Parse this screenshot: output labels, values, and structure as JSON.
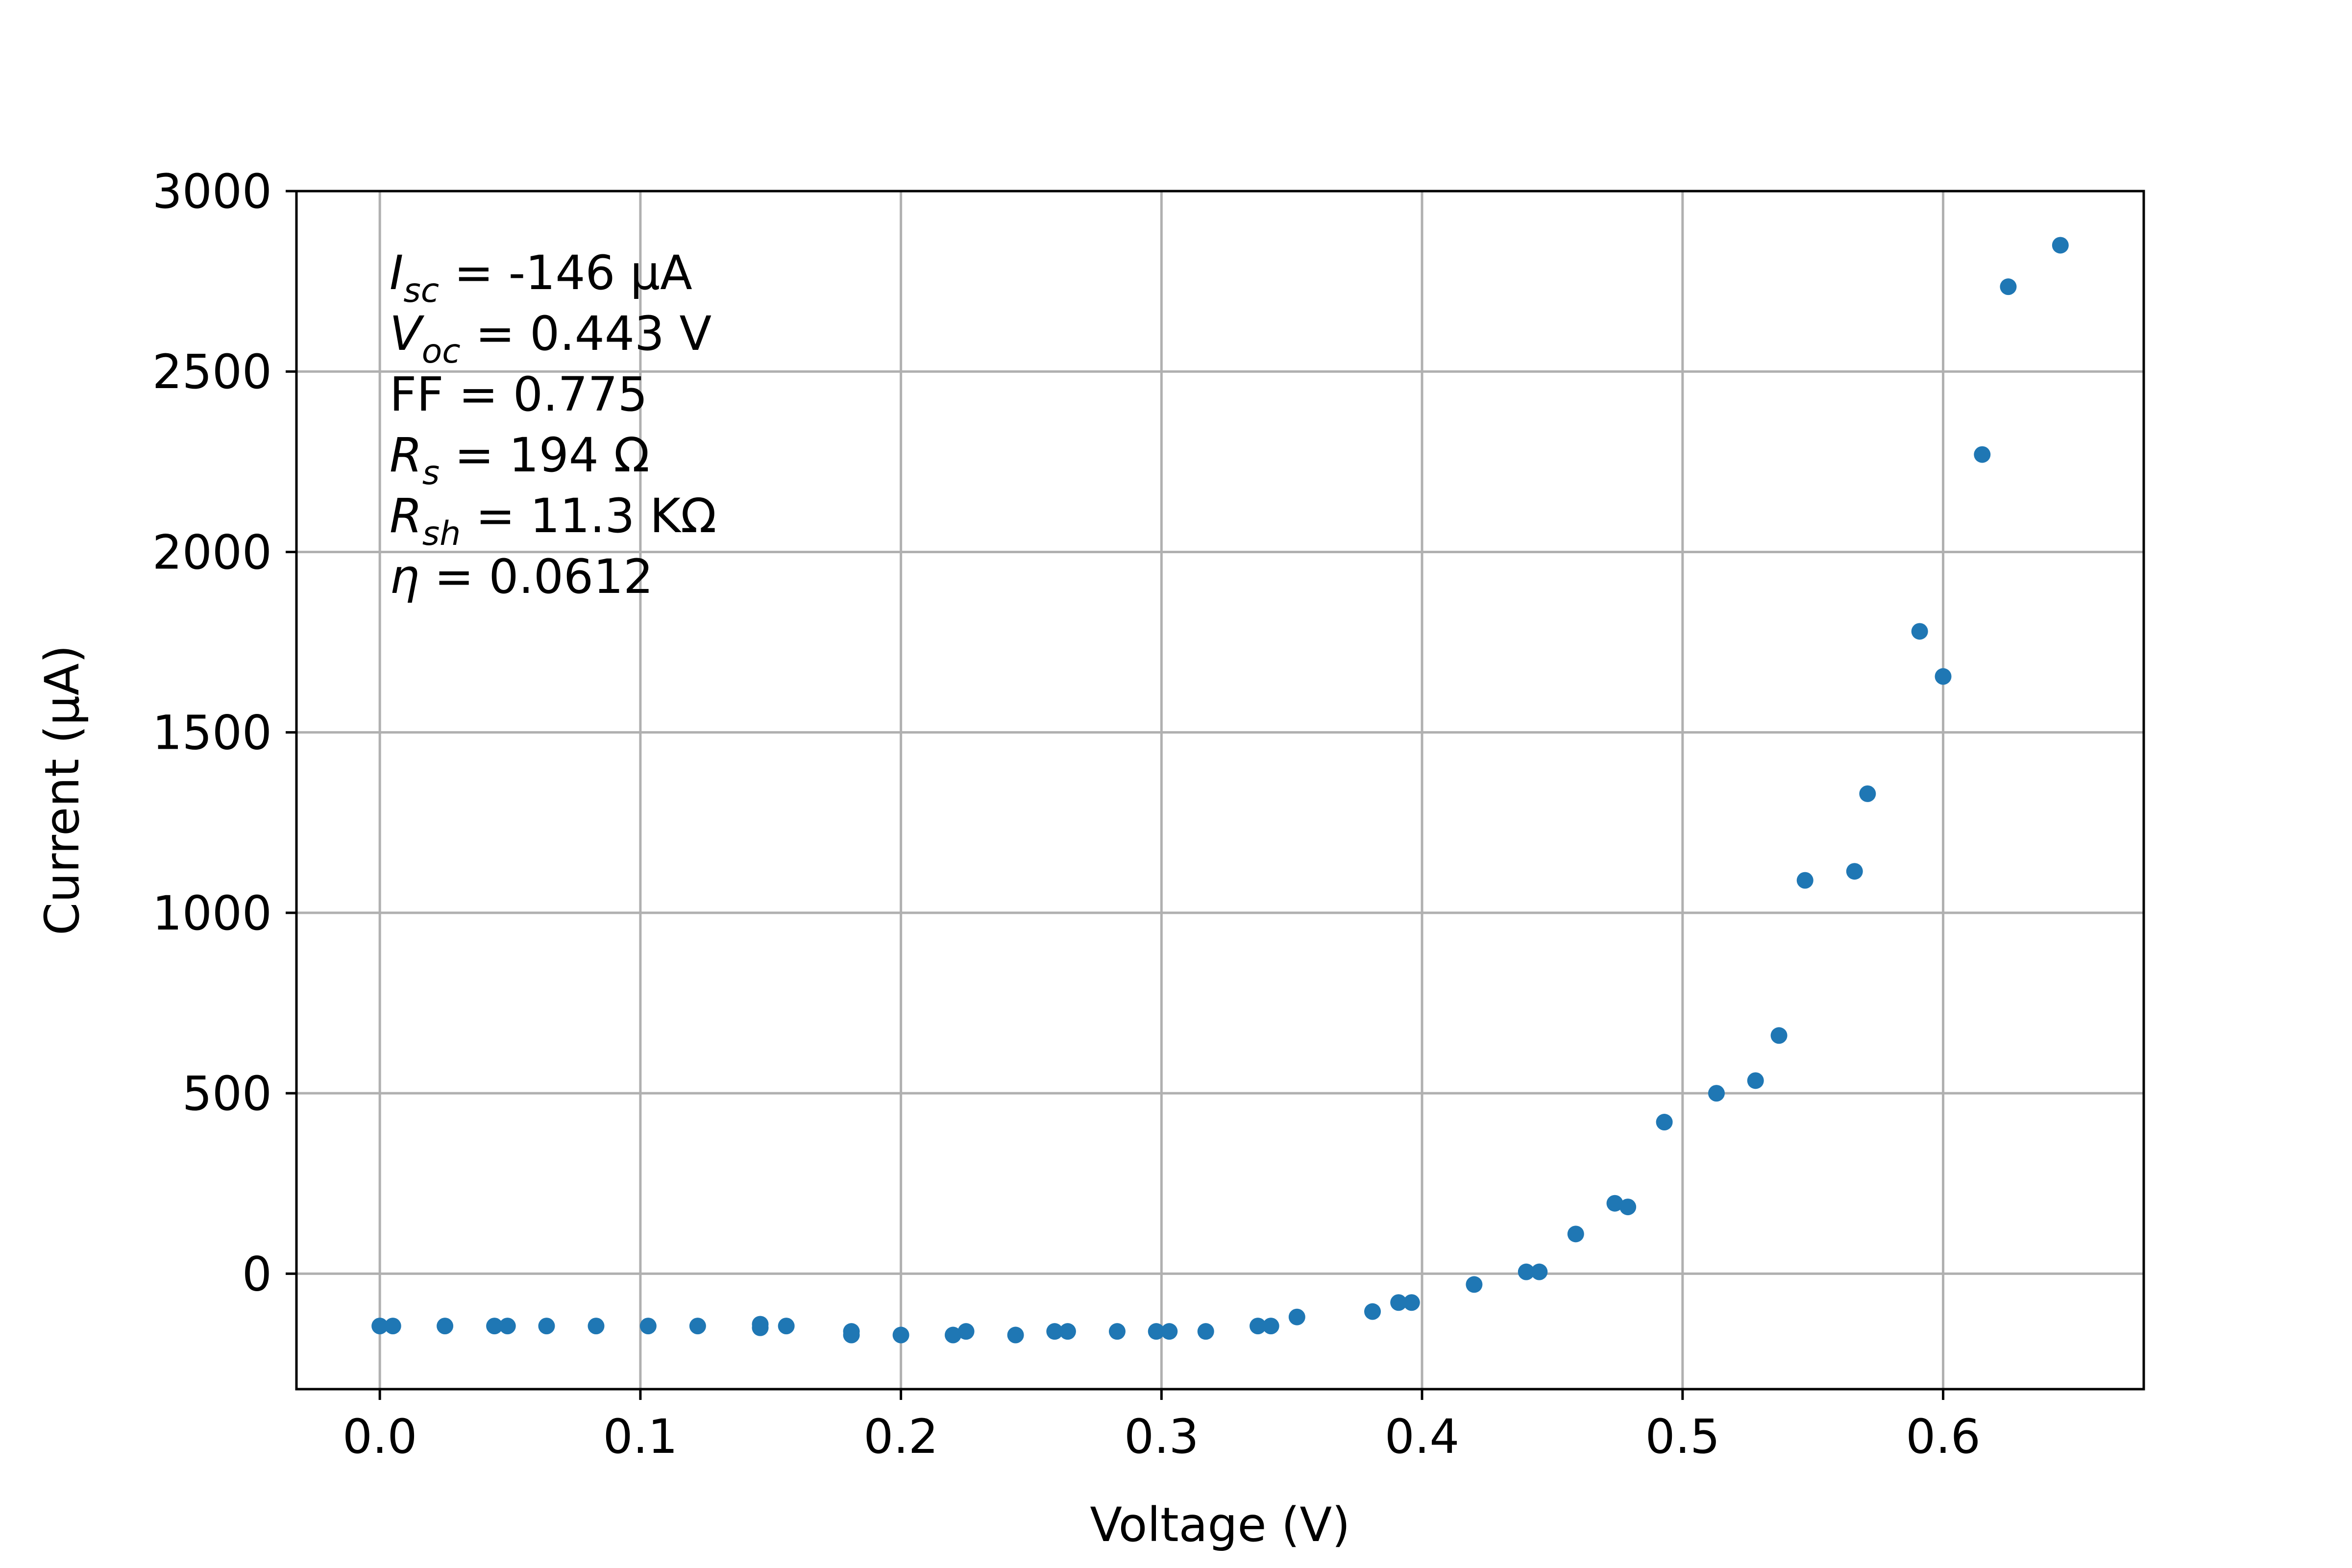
{
  "chart_data": {
    "type": "scatter",
    "xlabel": "Voltage (V)",
    "ylabel": "Current (μA)",
    "xlim": [
      -0.032,
      0.677
    ],
    "ylim": [
      -320,
      3000
    ],
    "xticks": [
      0.0,
      0.1,
      0.2,
      0.3,
      0.4,
      0.5,
      0.6
    ],
    "xtick_labels": [
      "0.0",
      "0.1",
      "0.2",
      "0.3",
      "0.4",
      "0.5",
      "0.6"
    ],
    "yticks": [
      0,
      500,
      1000,
      1500,
      2000,
      2500,
      3000
    ],
    "ytick_labels": [
      "0",
      "500",
      "1000",
      "1500",
      "2000",
      "2500",
      "3000"
    ],
    "grid": true,
    "marker_color": "#1f77b4",
    "annotations": [
      {
        "sym": "I",
        "sub": "sc",
        "rest": " = -146 μA"
      },
      {
        "sym": "V",
        "sub": "oc",
        "rest": " = 0.443 V"
      },
      {
        "sym": "",
        "sub": "",
        "rest": "FF = 0.775"
      },
      {
        "sym": "R",
        "sub": "s",
        "rest": " = 194 Ω"
      },
      {
        "sym": "R",
        "sub": "sh",
        "rest": " = 11.3 KΩ"
      },
      {
        "sym": "η",
        "sub": "",
        "rest": " = 0.0612"
      }
    ],
    "points": [
      [
        0.0,
        -145
      ],
      [
        0.005,
        -145
      ],
      [
        0.025,
        -145
      ],
      [
        0.044,
        -145
      ],
      [
        0.049,
        -145
      ],
      [
        0.064,
        -145
      ],
      [
        0.083,
        -145
      ],
      [
        0.103,
        -145
      ],
      [
        0.122,
        -145
      ],
      [
        0.146,
        -140
      ],
      [
        0.146,
        -150
      ],
      [
        0.156,
        -145
      ],
      [
        0.181,
        -160
      ],
      [
        0.181,
        -170
      ],
      [
        0.2,
        -170
      ],
      [
        0.22,
        -170
      ],
      [
        0.225,
        -160
      ],
      [
        0.244,
        -170
      ],
      [
        0.259,
        -160
      ],
      [
        0.264,
        -160
      ],
      [
        0.283,
        -160
      ],
      [
        0.298,
        -160
      ],
      [
        0.303,
        -160
      ],
      [
        0.317,
        -160
      ],
      [
        0.337,
        -145
      ],
      [
        0.342,
        -145
      ],
      [
        0.352,
        -120
      ],
      [
        0.381,
        -105
      ],
      [
        0.391,
        -80
      ],
      [
        0.396,
        -80
      ],
      [
        0.42,
        -30
      ],
      [
        0.44,
        5
      ],
      [
        0.445,
        5
      ],
      [
        0.459,
        110
      ],
      [
        0.474,
        195
      ],
      [
        0.479,
        185
      ],
      [
        0.493,
        420
      ],
      [
        0.513,
        500
      ],
      [
        0.528,
        535
      ],
      [
        0.537,
        660
      ],
      [
        0.547,
        1090
      ],
      [
        0.566,
        1115
      ],
      [
        0.571,
        1330
      ],
      [
        0.591,
        1780
      ],
      [
        0.6,
        1655
      ],
      [
        0.615,
        2270
      ],
      [
        0.625,
        2735
      ],
      [
        0.645,
        2850
      ]
    ]
  }
}
